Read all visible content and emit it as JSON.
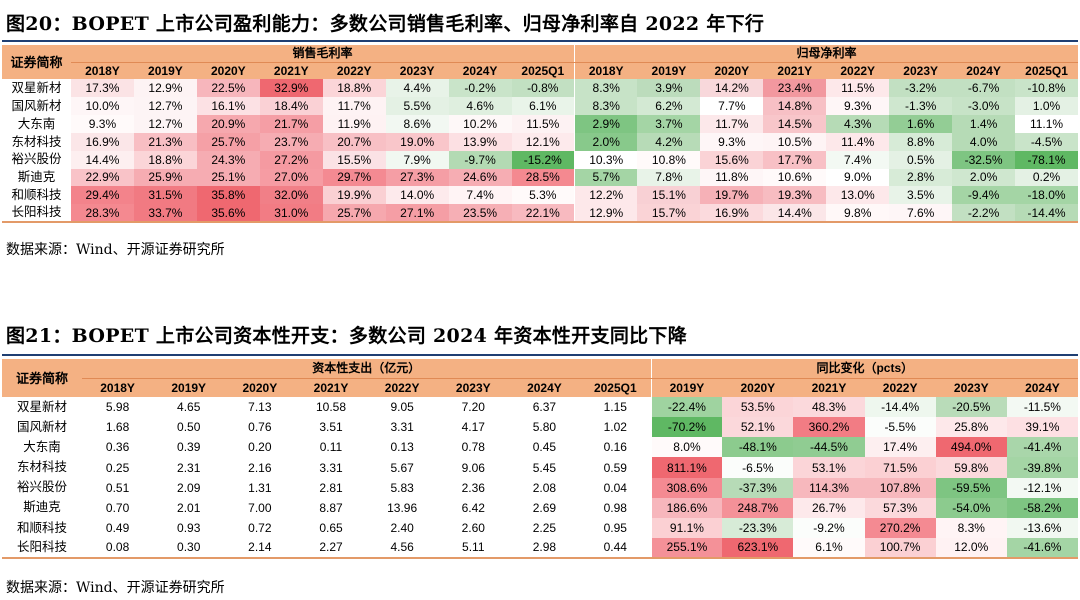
{
  "fig20": {
    "title": "图20：BOPET 上市公司盈利能力：多数公司销售毛利率、归母净利率自 2022 年下行",
    "corner": "证券简称",
    "group1": "销售毛利率",
    "group2": "归母净利率",
    "years1": [
      "2018Y",
      "2019Y",
      "2020Y",
      "2021Y",
      "2022Y",
      "2023Y",
      "2024Y",
      "2025Q1"
    ],
    "years2": [
      "2018Y",
      "2019Y",
      "2020Y",
      "2021Y",
      "2022Y",
      "2023Y",
      "2024Y",
      "2025Q1"
    ],
    "rows": [
      {
        "name": "双星新材",
        "a": [
          "17.3%",
          "12.9%",
          "22.5%",
          "32.9%",
          "18.8%",
          "4.4%",
          "-0.2%",
          "-0.8%"
        ],
        "b": [
          "8.3%",
          "3.9%",
          "14.2%",
          "23.4%",
          "11.5%",
          "-3.2%",
          "-6.7%",
          "-10.8%"
        ]
      },
      {
        "name": "国风新材",
        "a": [
          "10.0%",
          "12.7%",
          "16.1%",
          "18.4%",
          "11.7%",
          "5.5%",
          "4.6%",
          "6.1%"
        ],
        "b": [
          "8.3%",
          "6.2%",
          "7.7%",
          "14.8%",
          "9.3%",
          "-1.3%",
          "-3.0%",
          "1.0%"
        ]
      },
      {
        "name": "大东南",
        "a": [
          "9.3%",
          "12.7%",
          "20.9%",
          "21.7%",
          "11.9%",
          "8.6%",
          "10.2%",
          "11.5%"
        ],
        "b": [
          "2.9%",
          "3.7%",
          "11.7%",
          "14.5%",
          "4.3%",
          "1.6%",
          "1.4%",
          "11.1%"
        ]
      },
      {
        "name": "东材科技",
        "a": [
          "16.9%",
          "21.3%",
          "25.7%",
          "23.7%",
          "20.7%",
          "19.0%",
          "13.9%",
          "12.1%"
        ],
        "b": [
          "2.0%",
          "4.2%",
          "9.3%",
          "10.5%",
          "11.4%",
          "8.8%",
          "4.0%",
          "-4.5%"
        ]
      },
      {
        "name": "裕兴股份",
        "a": [
          "14.4%",
          "18.8%",
          "24.3%",
          "27.2%",
          "15.5%",
          "7.9%",
          "-9.7%",
          "-15.2%"
        ],
        "b": [
          "10.3%",
          "10.8%",
          "15.6%",
          "17.7%",
          "7.4%",
          "0.5%",
          "-32.5%",
          "-78.1%"
        ]
      },
      {
        "name": "斯迪克",
        "a": [
          "22.9%",
          "25.9%",
          "25.1%",
          "27.0%",
          "29.7%",
          "27.3%",
          "24.6%",
          "28.5%"
        ],
        "b": [
          "5.7%",
          "7.8%",
          "11.8%",
          "10.6%",
          "9.0%",
          "2.8%",
          "2.0%",
          "0.2%"
        ]
      },
      {
        "name": "和顺科技",
        "a": [
          "29.4%",
          "31.5%",
          "35.8%",
          "32.0%",
          "19.9%",
          "14.0%",
          "7.4%",
          "5.3%"
        ],
        "b": [
          "12.2%",
          "15.1%",
          "19.7%",
          "19.3%",
          "13.0%",
          "3.5%",
          "-9.4%",
          "-18.0%"
        ]
      },
      {
        "name": "长阳科技",
        "a": [
          "28.3%",
          "33.7%",
          "35.6%",
          "31.0%",
          "25.7%",
          "27.1%",
          "23.5%",
          "22.1%"
        ],
        "b": [
          "12.9%",
          "15.7%",
          "16.9%",
          "14.4%",
          "9.8%",
          "7.6%",
          "-2.2%",
          "-14.4%"
        ]
      }
    ],
    "colors": {
      "a": [
        [
          "#fbe3e5",
          "#fdf3f4",
          "#f7b6bc",
          "#ef6870",
          "#fbd5d8",
          "#e8f3e8",
          "#c9e4c9",
          "#c2e0c2"
        ],
        [
          "#fef6f7",
          "#fdf4f5",
          "#fce1e4",
          "#fad1d5",
          "#fef3f4",
          "#e4f1e4",
          "#dfefdf",
          "#e9f4e9"
        ],
        [
          "#fffafa",
          "#fdf4f5",
          "#f6a8ae",
          "#f59ea5",
          "#fef2f3",
          "#f2f8f2",
          "#fef8f8",
          "#fdf2f3"
        ],
        [
          "#fbe6e8",
          "#f8bec3",
          "#f5a0a6",
          "#f6acb2",
          "#f8c0c5",
          "#f9c6ca",
          "#fce0e3",
          "#fdeaec"
        ],
        [
          "#fdeff0",
          "#fbd5d8",
          "#f6acb2",
          "#f59aa1",
          "#fbe2e5",
          "#f1f8f1",
          "#b3dab3",
          "#5fb863"
        ],
        [
          "#f9c3c8",
          "#f6acb2",
          "#f6acb2",
          "#f69ca3",
          "#f48a92",
          "#f59ea5",
          "#f6adb3",
          "#f48990"
        ],
        [
          "#f3838b",
          "#f17a82",
          "#ef6870",
          "#f17f87",
          "#fad0d3",
          "#fdeaec",
          "#fff4f5",
          "#fffafa"
        ],
        [
          "#f48990",
          "#f17a82",
          "#ef6870",
          "#f27c84",
          "#f6a8ae",
          "#f59ea5",
          "#f6afb5",
          "#f8bac0"
        ]
      ],
      "b": [
        [
          "#c7e3c7",
          "#bcdcbc",
          "#f8d8db",
          "#f2989f",
          "#fde8ea",
          "#c2e0c2",
          "#c2e0c2",
          "#c9e4c9"
        ],
        [
          "#c7e3c7",
          "#d3e9d3",
          "#ffffff",
          "#f7c0c5",
          "#fef6f7",
          "#cfe7cf",
          "#c7e3c7",
          "#e4f1e4"
        ],
        [
          "#7ec582",
          "#a4d5a5",
          "#fce8ea",
          "#f8c6ca",
          "#b6dbb6",
          "#93cd95",
          "#b6dbb6",
          "#ffffff"
        ],
        [
          "#88c98b",
          "#b7dbb7",
          "#fef6f7",
          "#fef4f5",
          "#fde8ea",
          "#d7ebd7",
          "#b6dbb6",
          "#c9e4c9"
        ],
        [
          "#ffffff",
          "#fffafa",
          "#fad3d6",
          "#f8c0c5",
          "#f3f9f3",
          "#e4f1e4",
          "#7ec582",
          "#5fb863"
        ],
        [
          "#a4d5a5",
          "#e8f3e8",
          "#fef6f7",
          "#fffafa",
          "#ffffff",
          "#d7ebd7",
          "#cfe7cf",
          "#e4f1e4"
        ],
        [
          "#fde8ea",
          "#f8d0d4",
          "#f6b1b7",
          "#f7bcc1",
          "#fde8ea",
          "#e8f3e8",
          "#a4d5a5",
          "#a4d5a5"
        ],
        [
          "#fde8ea",
          "#fad3d6",
          "#fbdadd",
          "#fbe6e8",
          "#fff8f8",
          "#fef6f7",
          "#c2e0c2",
          "#b6dbb6"
        ]
      ]
    },
    "source": "数据来源：Wind、开源证券研究所"
  },
  "fig21": {
    "title": "图21：BOPET 上市公司资本性开支：多数公司 2024 年资本性开支同比下降",
    "corner": "证券简称",
    "group1": "资本性支出（亿元）",
    "group2": "同比变化（pcts）",
    "years1": [
      "2018Y",
      "2019Y",
      "2020Y",
      "2021Y",
      "2022Y",
      "2023Y",
      "2024Y",
      "2025Q1"
    ],
    "years2": [
      "2019Y",
      "2020Y",
      "2021Y",
      "2022Y",
      "2023Y",
      "2024Y"
    ],
    "rows": [
      {
        "name": "双星新材",
        "a": [
          "5.98",
          "4.65",
          "7.13",
          "10.58",
          "9.05",
          "7.20",
          "6.37",
          "1.15"
        ],
        "b": [
          "-22.4%",
          "53.5%",
          "48.3%",
          "-14.4%",
          "-20.5%",
          "-11.5%"
        ]
      },
      {
        "name": "国风新材",
        "a": [
          "1.68",
          "0.50",
          "0.76",
          "3.51",
          "3.31",
          "4.17",
          "5.80",
          "1.02"
        ],
        "b": [
          "-70.2%",
          "52.1%",
          "360.2%",
          "-5.5%",
          "25.8%",
          "39.1%"
        ]
      },
      {
        "name": "大东南",
        "a": [
          "0.36",
          "0.39",
          "0.20",
          "0.11",
          "0.13",
          "0.78",
          "0.45",
          "0.16"
        ],
        "b": [
          "8.0%",
          "-48.1%",
          "-44.5%",
          "17.4%",
          "494.0%",
          "-41.4%"
        ]
      },
      {
        "name": "东材科技",
        "a": [
          "0.25",
          "2.31",
          "2.16",
          "3.31",
          "5.67",
          "9.06",
          "5.45",
          "0.59"
        ],
        "b": [
          "811.1%",
          "-6.5%",
          "53.1%",
          "71.5%",
          "59.8%",
          "-39.8%"
        ]
      },
      {
        "name": "裕兴股份",
        "a": [
          "0.51",
          "2.09",
          "1.31",
          "2.81",
          "5.83",
          "2.36",
          "2.08",
          "0.04"
        ],
        "b": [
          "308.6%",
          "-37.3%",
          "114.3%",
          "107.8%",
          "-59.5%",
          "-12.1%"
        ]
      },
      {
        "name": "斯迪克",
        "a": [
          "0.70",
          "2.01",
          "7.00",
          "8.87",
          "13.96",
          "6.42",
          "2.69",
          "0.98"
        ],
        "b": [
          "186.6%",
          "248.7%",
          "26.7%",
          "57.3%",
          "-54.0%",
          "-58.2%"
        ]
      },
      {
        "name": "和顺科技",
        "a": [
          "0.49",
          "0.93",
          "0.72",
          "0.65",
          "2.40",
          "2.60",
          "2.25",
          "0.95"
        ],
        "b": [
          "91.1%",
          "-23.3%",
          "-9.2%",
          "270.2%",
          "8.3%",
          "-13.6%"
        ]
      },
      {
        "name": "长阳科技",
        "a": [
          "0.08",
          "0.30",
          "2.14",
          "2.27",
          "4.56",
          "5.11",
          "2.98",
          "0.44"
        ],
        "b": [
          "255.1%",
          "623.1%",
          "6.1%",
          "100.7%",
          "12.0%",
          "-41.6%"
        ]
      }
    ],
    "colors": {
      "b": [
        [
          "#9fd3a0",
          "#fbd5d8",
          "#fbd9dc",
          "#eef7ee",
          "#b9dcb9",
          "#f3f9f3"
        ],
        [
          "#5fb863",
          "#fbd8db",
          "#f27c84",
          "#fbfdfb",
          "#fde8ea",
          "#fde0e3"
        ],
        [
          "#fffafa",
          "#8ccb8e",
          "#90cc92",
          "#fdeff0",
          "#ef6870",
          "#a9d6aa"
        ],
        [
          "#ef6870",
          "#fbfdfb",
          "#fbd5d8",
          "#fbd0d3",
          "#fbd9dc",
          "#a4d5a5"
        ],
        [
          "#f48a92",
          "#b7dbb7",
          "#f7b8bd",
          "#f7b8bd",
          "#7ec582",
          "#f3f9f3"
        ],
        [
          "#f7b6bc",
          "#f49198",
          "#fde9eb",
          "#fbd9dc",
          "#8ccb8e",
          "#7ec582"
        ],
        [
          "#fbd0d3",
          "#d7ebd7",
          "#fbfdfb",
          "#f48a92",
          "#fff4f5",
          "#f1f8f1"
        ],
        [
          "#f49198",
          "#ef6870",
          "#fffafa",
          "#fbd0d3",
          "#fff2f3",
          "#a4d5a5"
        ]
      ]
    },
    "source": "数据来源：Wind、开源证券研究所"
  }
}
